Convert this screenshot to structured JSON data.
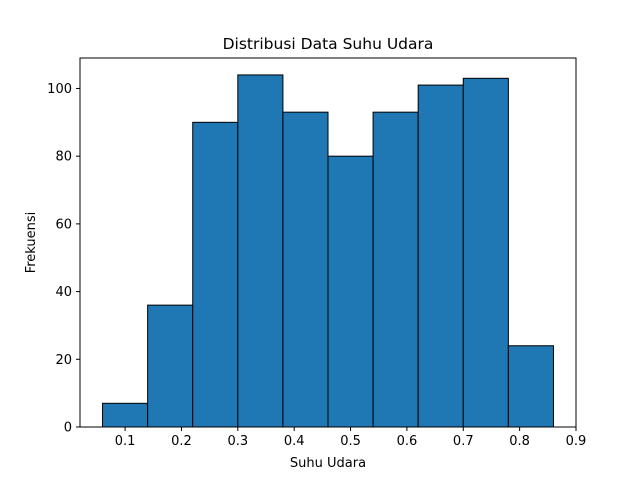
{
  "chart_data": {
    "type": "bar",
    "subtype": "histogram",
    "title": "Distribusi Data Suhu Udara",
    "xlabel": "Suhu Udara",
    "ylabel": "Frekuensi",
    "bin_edges": [
      0.06,
      0.14,
      0.22,
      0.3,
      0.38,
      0.46,
      0.54,
      0.62,
      0.7,
      0.78,
      0.86
    ],
    "values": [
      7,
      36,
      90,
      104,
      93,
      80,
      93,
      101,
      103,
      24
    ],
    "xlim": [
      0.02,
      0.9
    ],
    "ylim": [
      0,
      109
    ],
    "xticks": [
      0.1,
      0.2,
      0.3,
      0.4,
      0.5,
      0.6,
      0.7,
      0.8,
      0.9
    ],
    "xtick_labels": [
      "0.1",
      "0.2",
      "0.3",
      "0.4",
      "0.5",
      "0.6",
      "0.7",
      "0.8",
      "0.9"
    ],
    "yticks": [
      0,
      20,
      40,
      60,
      80,
      100
    ],
    "ytick_labels": [
      "0",
      "20",
      "40",
      "60",
      "80",
      "100"
    ],
    "bar_color": "#1f77b4",
    "edge_color": "#000000",
    "grid": false,
    "legend": "none"
  }
}
